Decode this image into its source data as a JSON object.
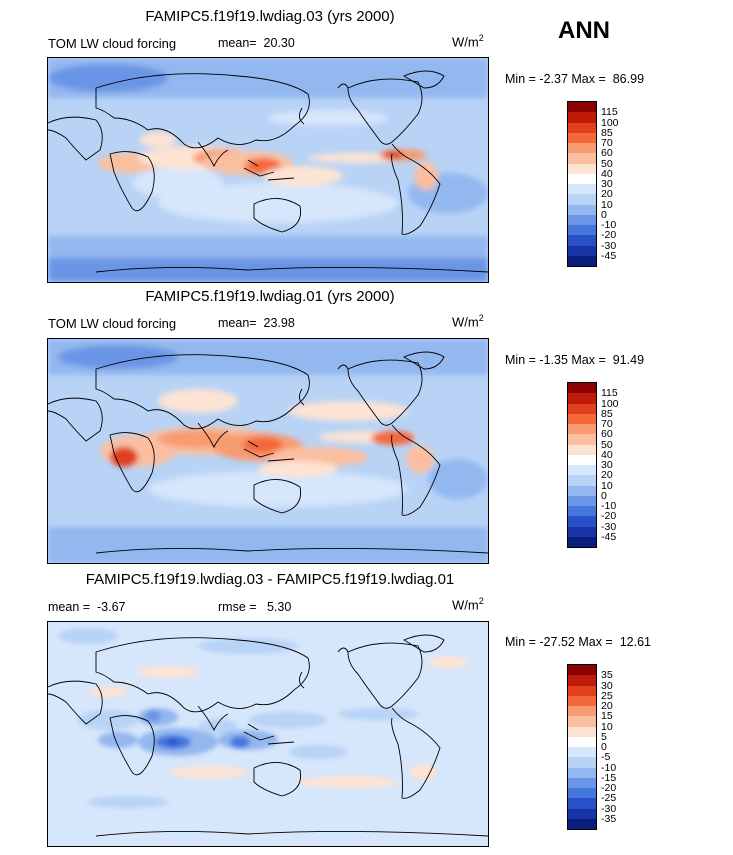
{
  "header": {
    "season": "ANN"
  },
  "units_text": {
    "base": "W/m",
    "exp": "2"
  },
  "panels": [
    {
      "title": "FAMIPC5.f19f19.lwdiag.03 (yrs 2000)",
      "subtitle": "TOM LW cloud forcing",
      "stat_left_label": "mean=",
      "stat_left_value": "20.30",
      "stat_right_label": "",
      "stat_right_value": "",
      "min_label": "Min =",
      "min_value": "-2.37",
      "max_label": "Max =",
      "max_value": "86.99",
      "colorbar": {
        "colors": [
          "#8b0000",
          "#c01a0a",
          "#e0401c",
          "#f4683a",
          "#f79b72",
          "#fbbfa0",
          "#fde3d3",
          "#ffffff",
          "#d6e6fb",
          "#b8d3f6",
          "#93b7ef",
          "#6b95e6",
          "#4476dc",
          "#2a50c8",
          "#1934a6",
          "#0a1e7e"
        ],
        "labels": [
          "115",
          "100",
          "85",
          "70",
          "60",
          "50",
          "40",
          "30",
          "20",
          "10",
          "0",
          "-10",
          "-20",
          "-30",
          "-45"
        ]
      }
    },
    {
      "title": "FAMIPC5.f19f19.lwdiag.01 (yrs 2000)",
      "subtitle": "TOM LW cloud forcing",
      "stat_left_label": "mean=",
      "stat_left_value": "23.98",
      "stat_right_label": "",
      "stat_right_value": "",
      "min_label": "Min =",
      "min_value": "-1.35",
      "max_label": "Max =",
      "max_value": "91.49",
      "colorbar": {
        "colors": [
          "#8b0000",
          "#c01a0a",
          "#e0401c",
          "#f4683a",
          "#f79b72",
          "#fbbfa0",
          "#fde3d3",
          "#ffffff",
          "#d6e6fb",
          "#b8d3f6",
          "#93b7ef",
          "#6b95e6",
          "#4476dc",
          "#2a50c8",
          "#1934a6",
          "#0a1e7e"
        ],
        "labels": [
          "115",
          "100",
          "85",
          "70",
          "60",
          "50",
          "40",
          "30",
          "20",
          "10",
          "0",
          "-10",
          "-20",
          "-30",
          "-45"
        ]
      }
    },
    {
      "title": "FAMIPC5.f19f19.lwdiag.03 - FAMIPC5.f19f19.lwdiag.01",
      "subtitle": "",
      "stat_left_label": "mean =",
      "stat_left_value": "-3.67",
      "stat_right_label": "rmse =",
      "stat_right_value": "5.30",
      "min_label": "Min =",
      "min_value": "-27.52",
      "max_label": "Max =",
      "max_value": "12.61",
      "colorbar": {
        "colors": [
          "#8b0000",
          "#c01a0a",
          "#e0401c",
          "#f4683a",
          "#f79b72",
          "#fbbfa0",
          "#fde3d3",
          "#ffffff",
          "#d6e6fb",
          "#b8d3f6",
          "#93b7ef",
          "#6b95e6",
          "#4476dc",
          "#2a50c8",
          "#1934a6",
          "#0a1e7e"
        ],
        "labels": [
          "35",
          "30",
          "25",
          "20",
          "15",
          "10",
          "5",
          "0",
          "-5",
          "-10",
          "-15",
          "-20",
          "-25",
          "-30",
          "-35"
        ]
      }
    }
  ],
  "chart_data": [
    {
      "type": "heatmap",
      "title": "FAMIPC5.f19f19.lwdiag.03 (yrs 2000)",
      "variable": "TOM LW cloud forcing",
      "units": "W/m2",
      "mean": 20.3,
      "min": -2.37,
      "max": 86.99,
      "contour_levels": [
        -45,
        -30,
        -20,
        -10,
        0,
        10,
        20,
        30,
        40,
        50,
        60,
        70,
        85,
        100,
        115
      ]
    },
    {
      "type": "heatmap",
      "title": "FAMIPC5.f19f19.lwdiag.01 (yrs 2000)",
      "variable": "TOM LW cloud forcing",
      "units": "W/m2",
      "mean": 23.98,
      "min": -1.35,
      "max": 91.49,
      "contour_levels": [
        -45,
        -30,
        -20,
        -10,
        0,
        10,
        20,
        30,
        40,
        50,
        60,
        70,
        85,
        100,
        115
      ]
    },
    {
      "type": "heatmap",
      "title": "FAMIPC5.f19f19.lwdiag.03 - FAMIPC5.f19f19.lwdiag.01",
      "units": "W/m2",
      "mean": -3.67,
      "rmse": 5.3,
      "min": -27.52,
      "max": 12.61,
      "contour_levels": [
        -35,
        -30,
        -25,
        -20,
        -15,
        -10,
        -5,
        0,
        5,
        10,
        15,
        20,
        25,
        30,
        35
      ]
    }
  ]
}
